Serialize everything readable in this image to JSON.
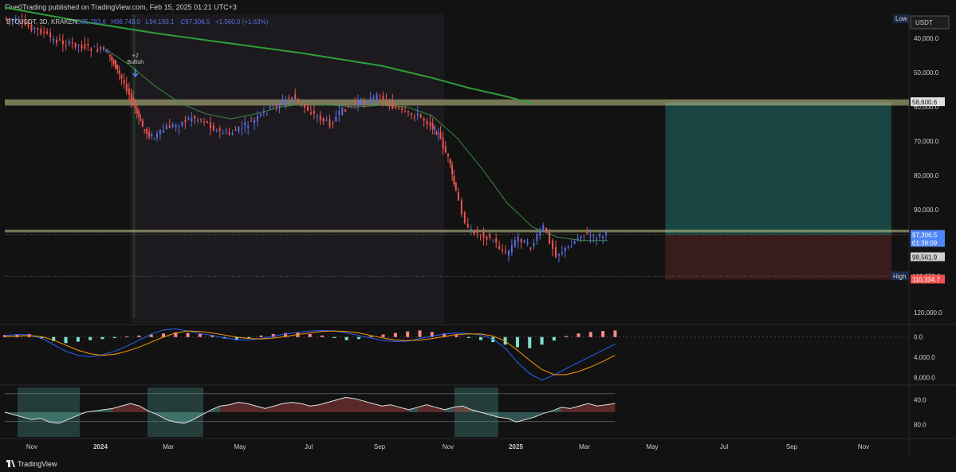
{
  "header": {
    "published": "Five0Trading published on TradingView.com, Feb 15, 2025 01:21 UTC+3"
  },
  "footer": {
    "brand": "TradingView"
  },
  "colors": {
    "background": "#121212",
    "up": "#ef5350",
    "down": "#5b6ee1",
    "ema": "#2e9e3a",
    "zone": "#c7c98a",
    "target": "#26a69a",
    "stop": "#ef5350",
    "macd": "#2962ff",
    "signal": "#ff9800",
    "hist_pos": "#ff8a8a",
    "hist_neg": "#7fe0d0"
  },
  "chart_data": {
    "type": "line",
    "symbol_line": {
      "ticker": "BTCUSDT, 3D, KRAKEN",
      "open": "O35,783.6",
      "high": "H98,749.0",
      "low": "L94,150.1",
      "close": "C97,306.5",
      "change": "+1,560.0 (+1.63%)"
    },
    "y_axis": {
      "inverted": true,
      "currency": "USDT",
      "ticks": [
        "40,000.0",
        "50,000.0",
        "60,000.0",
        "70,000.0",
        "80,000.0",
        "90,000.0",
        "120,000.0"
      ],
      "range": [
        33000,
        123000
      ]
    },
    "x_axis": {
      "ticks": [
        "Nov",
        "2024",
        "Mar",
        "May",
        "Jul",
        "Sep",
        "Nov",
        "2025",
        "Mar",
        "May",
        "Jul",
        "Sep",
        "Nov"
      ]
    },
    "price_labels": [
      {
        "text": "58,600.6",
        "value": 58600.6,
        "kind": "zone"
      },
      {
        "text": "97,306.5",
        "value": 97306.5,
        "kind": "last"
      },
      {
        "text": "01:38:09",
        "value": null,
        "kind": "countdown"
      },
      {
        "text": "98,561.9",
        "value": 98561.9,
        "kind": "grey"
      },
      {
        "text": "109,373.0",
        "value": 109373.0,
        "kind": "high"
      },
      {
        "text": "110,334.7",
        "value": 110334.7,
        "kind": "stop"
      }
    ],
    "low_tag": "Low",
    "high_tag": "High",
    "annotation": {
      "text_top": "+2",
      "text_bottom": "Bullish",
      "month": "Feb 2024"
    },
    "zones": [
      {
        "name": "upper-zone",
        "from": 57800,
        "to": 59600
      },
      {
        "name": "lower-zone",
        "from": 95800,
        "to": 96600
      }
    ],
    "position": {
      "entry": 97300,
      "target": 58600.6,
      "stop": 110334.7,
      "start_month": "Feb 2025",
      "end_month": "Aug 2025"
    },
    "series": [
      {
        "kind": "price",
        "points": [
          [
            0,
            34000
          ],
          [
            0.5,
            35000
          ],
          [
            1,
            36500
          ],
          [
            1.5,
            38000
          ],
          [
            2,
            40500
          ],
          [
            2.5,
            41500
          ],
          [
            3,
            42000
          ],
          [
            3.5,
            43000
          ],
          [
            4,
            43500
          ],
          [
            4.3,
            46000
          ],
          [
            4.6,
            50500
          ],
          [
            5,
            56000
          ],
          [
            5.3,
            62000
          ],
          [
            5.6,
            67000
          ],
          [
            6,
            69000
          ],
          [
            6.5,
            66000
          ],
          [
            7,
            65000
          ],
          [
            7.5,
            63000
          ],
          [
            8,
            64000
          ],
          [
            8.5,
            67000
          ],
          [
            9,
            68000
          ],
          [
            9.5,
            66000
          ],
          [
            10,
            64000
          ],
          [
            10.5,
            61000
          ],
          [
            11,
            59000
          ],
          [
            11.5,
            57000
          ],
          [
            12,
            60000
          ],
          [
            12.5,
            63000
          ],
          [
            13,
            65000
          ],
          [
            13.5,
            61000
          ],
          [
            14,
            59000
          ],
          [
            14.5,
            58000
          ],
          [
            15,
            57000
          ],
          [
            15.5,
            60000
          ],
          [
            16,
            62000
          ],
          [
            16.5,
            62500
          ],
          [
            17,
            65000
          ],
          [
            17.3,
            68000
          ],
          [
            17.7,
            75000
          ],
          [
            18,
            85000
          ],
          [
            18.5,
            96000
          ],
          [
            19,
            97000
          ],
          [
            19.5,
            99000
          ],
          [
            20,
            103000
          ],
          [
            20.5,
            98000
          ],
          [
            21,
            101000
          ],
          [
            21.5,
            95000
          ],
          [
            22,
            103000
          ],
          [
            22.5,
            101000
          ],
          [
            23,
            97000
          ],
          [
            23.5,
            98000
          ],
          [
            24,
            97300
          ]
        ]
      },
      {
        "kind": "ema",
        "name": "",
        "points": [
          [
            0,
            31000
          ],
          [
            3,
            35000
          ],
          [
            6,
            38500
          ],
          [
            9,
            41500
          ],
          [
            12,
            44500
          ],
          [
            15,
            48000
          ],
          [
            17,
            51500
          ],
          [
            18.5,
            54500
          ],
          [
            20,
            57000
          ],
          [
            21,
            59000
          ]
        ]
      },
      {
        "kind": "short-ema",
        "points": [
          [
            4,
            43000
          ],
          [
            5,
            48000
          ],
          [
            6,
            54000
          ],
          [
            7,
            59000
          ],
          [
            8,
            62000
          ],
          [
            9,
            63500
          ],
          [
            10,
            62000
          ],
          [
            11,
            60000
          ],
          [
            12,
            59000
          ],
          [
            13,
            59500
          ],
          [
            14,
            60000
          ],
          [
            15,
            59500
          ],
          [
            16,
            60000
          ],
          [
            17,
            62500
          ],
          [
            18,
            69000
          ],
          [
            19,
            78000
          ],
          [
            20,
            88000
          ],
          [
            21,
            95000
          ],
          [
            22,
            98000
          ],
          [
            23,
            99000
          ],
          [
            24,
            99000
          ]
        ]
      }
    ],
    "macd": {
      "ticks": [
        "0.0",
        "4,000.0",
        "8,000.0"
      ],
      "histogram": [
        400,
        500,
        600,
        -300,
        -800,
        -1200,
        -900,
        -600,
        -400,
        -200,
        150,
        300,
        500,
        700,
        900,
        800,
        600,
        400,
        -300,
        -600,
        -200,
        300,
        600,
        800,
        900,
        600,
        300,
        -200,
        -600,
        -400,
        200,
        500,
        800,
        1100,
        1300,
        1000,
        700,
        400,
        -200,
        -600,
        -1000,
        -1500,
        -2000,
        -2200,
        -1500,
        -700,
        200,
        700,
        1000,
        1200,
        1300
      ],
      "macd_line": [
        300,
        500,
        400,
        -200,
        -1500,
        -2800,
        -3600,
        -3900,
        -3500,
        -2800,
        -1800,
        -600,
        600,
        1400,
        1600,
        1200,
        700,
        300,
        -200,
        -500,
        -600,
        -300,
        200,
        600,
        900,
        1200,
        1300,
        1200,
        800,
        300,
        -200,
        -700,
        -900,
        -800,
        -300,
        200,
        600,
        800,
        700,
        400,
        -400,
        -2200,
        -5000,
        -7200,
        -8500,
        -7500,
        -6200,
        -5000,
        -3800,
        -2600,
        -1400
      ],
      "signal_line": [
        100,
        200,
        300,
        100,
        -600,
        -1600,
        -2600,
        -3300,
        -3600,
        -3400,
        -2800,
        -2000,
        -1000,
        0,
        800,
        1200,
        1100,
        800,
        400,
        0,
        -300,
        -400,
        -200,
        100,
        500,
        800,
        1100,
        1200,
        1100,
        800,
        300,
        -200,
        -600,
        -700,
        -600,
        -300,
        100,
        500,
        600,
        600,
        200,
        -800,
        -2600,
        -4600,
        -6400,
        -7400,
        -7400,
        -6800,
        -5900,
        -4800,
        -3600
      ]
    },
    "oscillator": {
      "ticks": [
        "40.0",
        "80.0"
      ],
      "range": [
        20,
        100
      ],
      "upper_band": 30,
      "lower_band": 75,
      "values": [
        60,
        64,
        68,
        72,
        70,
        76,
        78,
        72,
        66,
        60,
        58,
        56,
        54,
        50,
        46,
        50,
        58,
        64,
        72,
        76,
        78,
        72,
        64,
        56,
        50,
        48,
        44,
        46,
        50,
        54,
        50,
        46,
        44,
        46,
        50,
        48,
        44,
        40,
        36,
        38,
        42,
        46,
        50,
        48,
        52,
        56,
        52,
        48,
        52,
        56,
        52,
        50,
        56,
        60,
        64,
        68,
        70,
        76,
        72,
        68,
        62,
        58,
        52,
        54,
        50,
        46,
        50,
        48,
        46
      ]
    }
  }
}
